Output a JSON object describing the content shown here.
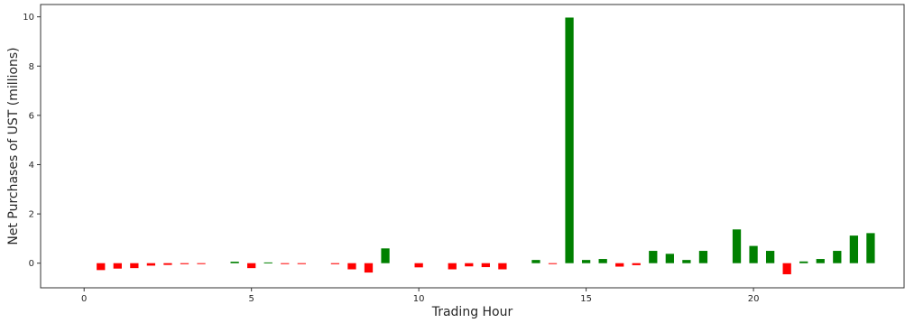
{
  "chart_data": {
    "type": "bar",
    "xlabel": "Trading Hour",
    "ylabel": "Net Purchases of UST (millions)",
    "xlim": [
      -1.3,
      24.5
    ],
    "ylim": [
      -1.0,
      10.5
    ],
    "xticks": [
      0,
      5,
      10,
      15,
      20
    ],
    "yticks": [
      0,
      2,
      4,
      6,
      8,
      10
    ],
    "grid": false,
    "positive_color": "#008000",
    "negative_color": "#ff0000",
    "bar_width": 0.25,
    "x": [
      0.5,
      1.0,
      1.5,
      2.0,
      2.5,
      3.0,
      3.5,
      4.0,
      4.5,
      5.0,
      5.5,
      6.0,
      6.5,
      7.0,
      7.5,
      8.0,
      8.5,
      9.0,
      9.5,
      10.0,
      10.5,
      11.0,
      11.5,
      12.0,
      12.5,
      13.0,
      13.5,
      14.0,
      14.5,
      15.0,
      15.5,
      16.0,
      16.5,
      17.0,
      17.5,
      18.0,
      18.5,
      19.0,
      19.5,
      20.0,
      20.5,
      21.0,
      21.5,
      22.0,
      22.5,
      23.0,
      23.5
    ],
    "values": [
      -0.28,
      -0.22,
      -0.2,
      -0.1,
      -0.07,
      -0.04,
      -0.03,
      0.0,
      0.06,
      -0.2,
      0.03,
      -0.03,
      -0.03,
      0.0,
      -0.04,
      -0.25,
      -0.38,
      0.6,
      0.0,
      -0.17,
      0.0,
      -0.25,
      -0.13,
      -0.16,
      -0.25,
      0.0,
      0.13,
      -0.02,
      9.97,
      0.13,
      0.17,
      -0.14,
      -0.08,
      0.5,
      0.38,
      0.13,
      0.5,
      0.0,
      1.37,
      0.7,
      0.5,
      -0.45,
      0.07,
      0.17,
      0.5,
      1.12,
      1.22
    ]
  }
}
